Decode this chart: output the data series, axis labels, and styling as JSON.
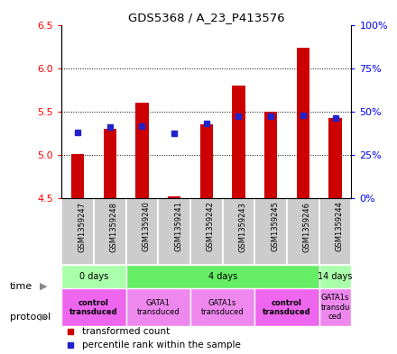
{
  "title": "GDS5368 / A_23_P413576",
  "samples": [
    "GSM1359247",
    "GSM1359248",
    "GSM1359240",
    "GSM1359241",
    "GSM1359242",
    "GSM1359243",
    "GSM1359245",
    "GSM1359246",
    "GSM1359244"
  ],
  "red_values": [
    5.01,
    5.3,
    5.6,
    4.52,
    5.35,
    5.8,
    5.5,
    6.24,
    5.42
  ],
  "blue_values": [
    5.26,
    5.32,
    5.33,
    5.25,
    5.36,
    5.44,
    5.44,
    5.46,
    5.42
  ],
  "ymin": 4.5,
  "ymax": 6.5,
  "yticks_left": [
    4.5,
    5.0,
    5.5,
    6.0,
    6.5
  ],
  "yticks_right": [
    0,
    25,
    50,
    75,
    100
  ],
  "ytick_right_labels": [
    "0%",
    "25%",
    "50%",
    "75%",
    "100%"
  ],
  "bar_color": "#cc0000",
  "blue_color": "#2222cc",
  "time_groups": [
    {
      "label": "0 days",
      "start": 0,
      "end": 2,
      "color": "#aaffaa"
    },
    {
      "label": "4 days",
      "start": 2,
      "end": 8,
      "color": "#66ee66"
    },
    {
      "label": "14 days",
      "start": 8,
      "end": 9,
      "color": "#aaffaa"
    }
  ],
  "protocol_groups": [
    {
      "label": "control\ntransduced",
      "start": 0,
      "end": 2,
      "color": "#ee66ee",
      "bold": true
    },
    {
      "label": "GATA1\ntransduced",
      "start": 2,
      "end": 4,
      "color": "#ee88ee",
      "bold": false
    },
    {
      "label": "GATA1s\ntransduced",
      "start": 4,
      "end": 6,
      "color": "#ee88ee",
      "bold": false
    },
    {
      "label": "control\ntransduced",
      "start": 6,
      "end": 8,
      "color": "#ee66ee",
      "bold": true
    },
    {
      "label": "GATA1s\ntransdu\nced",
      "start": 8,
      "end": 9,
      "color": "#ee88ee",
      "bold": false
    }
  ],
  "sample_box_color": "#cccccc",
  "legend_red": "transformed count",
  "legend_blue": "percentile rank within the sample",
  "bar_width": 0.4
}
